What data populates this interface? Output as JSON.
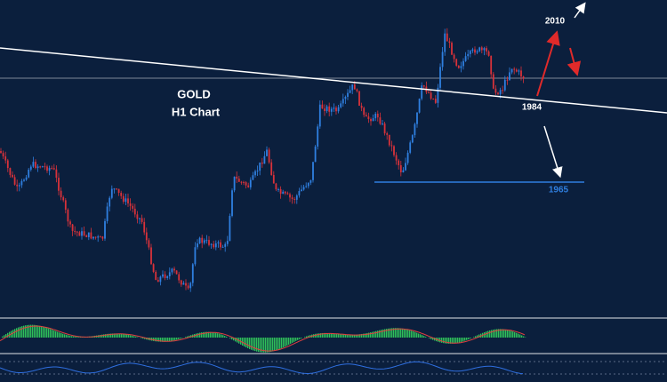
{
  "labels": {
    "title": "GOLD",
    "subtitle": "H1 Chart",
    "target_high": "2010",
    "trend_level": "1984",
    "support": "1965"
  }
}
